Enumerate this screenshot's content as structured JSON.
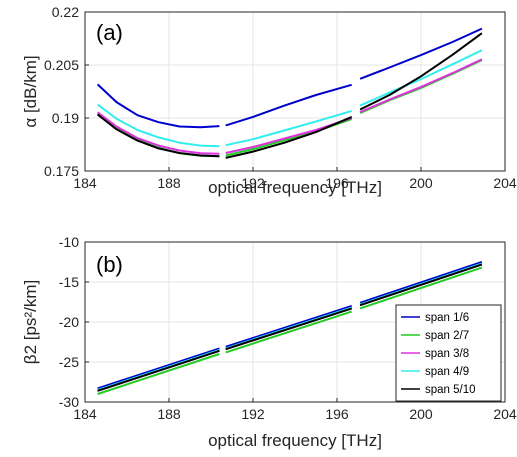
{
  "chart_data": [
    {
      "type": "line",
      "panel_label": "(a)",
      "xlabel": "optical frequency [THz]",
      "ylabel": "α [dB/km]",
      "xlim": [
        184,
        204
      ],
      "ylim": [
        0.175,
        0.22
      ],
      "xticks": [
        "184",
        "188",
        "192",
        "196",
        "200",
        "204"
      ],
      "yticks": [
        "0.175",
        "0.19",
        "0.205",
        "0.22"
      ],
      "grid": true,
      "series": [
        {
          "name": "span 1/6",
          "color": "#0000cc",
          "segments": [
            {
              "x": [
                184.6,
                185.5,
                186.5,
                187.5,
                188.5,
                189.5,
                190.4
              ],
              "y": [
                0.1995,
                0.1945,
                0.1908,
                0.1888,
                0.1876,
                0.1874,
                0.1877
              ]
            },
            {
              "x": [
                190.7,
                192,
                193.5,
                195,
                196.7
              ],
              "y": [
                0.1879,
                0.1903,
                0.1935,
                0.1965,
                0.1994
              ]
            },
            {
              "x": [
                197.1,
                198.5,
                200,
                201.5,
                202.9
              ],
              "y": [
                0.2011,
                0.2043,
                0.2078,
                0.2115,
                0.2153
              ]
            }
          ]
        },
        {
          "name": "span 2/7",
          "color": "#22cc22",
          "segments": [
            {
              "x": [
                184.6,
                185.5,
                186.5,
                187.5,
                188.5,
                189.5,
                190.4
              ],
              "y": [
                0.1912,
                0.1872,
                0.1838,
                0.1816,
                0.18,
                0.1793,
                0.1792
              ]
            },
            {
              "x": [
                190.7,
                192,
                193.5,
                195,
                196.7
              ],
              "y": [
                0.1794,
                0.1812,
                0.1837,
                0.1862,
                0.1897
              ]
            },
            {
              "x": [
                197.1,
                198.5,
                200,
                201.5,
                202.9
              ],
              "y": [
                0.1914,
                0.195,
                0.1985,
                0.2025,
                0.2064
              ]
            }
          ]
        },
        {
          "name": "span 3/8",
          "color": "#dd33dd",
          "segments": [
            {
              "x": [
                184.6,
                185.5,
                186.5,
                187.5,
                188.5,
                189.5,
                190.4
              ],
              "y": [
                0.1916,
                0.1876,
                0.1843,
                0.1822,
                0.1808,
                0.18,
                0.1799
              ]
            },
            {
              "x": [
                190.7,
                192,
                193.5,
                195,
                196.7
              ],
              "y": [
                0.1801,
                0.1818,
                0.1842,
                0.1866,
                0.19
              ]
            },
            {
              "x": [
                197.1,
                198.5,
                200,
                201.5,
                202.9
              ],
              "y": [
                0.1917,
                0.1952,
                0.1988,
                0.2027,
                0.2066
              ]
            }
          ]
        },
        {
          "name": "span 4/9",
          "color": "#33eeee",
          "segments": [
            {
              "x": [
                184.6,
                185.5,
                186.5,
                187.5,
                188.5,
                189.5,
                190.4
              ],
              "y": [
                0.1938,
                0.1898,
                0.1866,
                0.1845,
                0.183,
                0.1822,
                0.182
              ]
            },
            {
              "x": [
                190.7,
                192,
                193.5,
                195,
                196.7
              ],
              "y": [
                0.1823,
                0.184,
                0.1865,
                0.189,
                0.192
              ]
            },
            {
              "x": [
                197.1,
                198.5,
                200,
                201.5,
                202.9
              ],
              "y": [
                0.1935,
                0.1972,
                0.201,
                0.2052,
                0.2092
              ]
            }
          ]
        },
        {
          "name": "span 5/10",
          "color": "#000000",
          "segments": [
            {
              "x": [
                184.6,
                185.5,
                186.5,
                187.5,
                188.5,
                189.5,
                190.4
              ],
              "y": [
                0.191,
                0.1868,
                0.1836,
                0.1814,
                0.1801,
                0.1794,
                0.1792
              ]
            },
            {
              "x": [
                190.7,
                192,
                193.5,
                195,
                196.7
              ],
              "y": [
                0.1787,
                0.1805,
                0.183,
                0.186,
                0.1903
              ]
            },
            {
              "x": [
                197.1,
                198.5,
                200,
                201.5,
                202.9
              ],
              "y": [
                0.1924,
                0.1965,
                0.2018,
                0.2079,
                0.214
              ]
            }
          ]
        }
      ]
    },
    {
      "type": "line",
      "panel_label": "(b)",
      "xlabel": "optical frequency [THz]",
      "ylabel": "β2 [ps²/km]",
      "xlim": [
        184,
        204
      ],
      "ylim": [
        -30,
        -10
      ],
      "xticks": [
        "184",
        "188",
        "192",
        "196",
        "200",
        "204"
      ],
      "yticks": [
        "-10",
        "-15",
        "-20",
        "-25",
        "-30"
      ],
      "grid": true,
      "legend_position": "bottom-right",
      "series": [
        {
          "name": "span 1/6",
          "color": "#0000cc",
          "segments": [
            {
              "x": [
                184.6,
                190.4
              ],
              "y": [
                -28.3,
                -23.3
              ]
            },
            {
              "x": [
                190.7,
                196.7
              ],
              "y": [
                -23.1,
                -18.0
              ]
            },
            {
              "x": [
                197.1,
                202.9
              ],
              "y": [
                -17.6,
                -12.5
              ]
            }
          ]
        },
        {
          "name": "span 2/7",
          "color": "#22cc22",
          "segments": [
            {
              "x": [
                184.6,
                190.4
              ],
              "y": [
                -29.0,
                -24.0
              ]
            },
            {
              "x": [
                190.7,
                196.7
              ],
              "y": [
                -23.8,
                -18.7
              ]
            },
            {
              "x": [
                197.1,
                202.9
              ],
              "y": [
                -18.3,
                -13.2
              ]
            }
          ]
        },
        {
          "name": "span 3/8",
          "color": "#dd33dd",
          "segments": [
            {
              "x": [
                184.6,
                190.4
              ],
              "y": [
                -28.6,
                -23.6
              ]
            },
            {
              "x": [
                190.7,
                196.7
              ],
              "y": [
                -23.4,
                -18.3
              ]
            },
            {
              "x": [
                197.1,
                202.9
              ],
              "y": [
                -17.9,
                -12.8
              ]
            }
          ]
        },
        {
          "name": "span 4/9",
          "color": "#33eeee",
          "segments": [
            {
              "x": [
                184.6,
                190.4
              ],
              "y": [
                -28.5,
                -23.5
              ]
            },
            {
              "x": [
                190.7,
                196.7
              ],
              "y": [
                -23.3,
                -18.2
              ]
            },
            {
              "x": [
                197.1,
                202.9
              ],
              "y": [
                -17.8,
                -12.7
              ]
            }
          ]
        },
        {
          "name": "span 5/10",
          "color": "#000000",
          "segments": [
            {
              "x": [
                184.6,
                190.4
              ],
              "y": [
                -28.6,
                -23.6
              ]
            },
            {
              "x": [
                190.7,
                196.7
              ],
              "y": [
                -23.4,
                -18.3
              ]
            },
            {
              "x": [
                197.1,
                202.9
              ],
              "y": [
                -17.9,
                -12.8
              ]
            }
          ]
        }
      ]
    }
  ]
}
